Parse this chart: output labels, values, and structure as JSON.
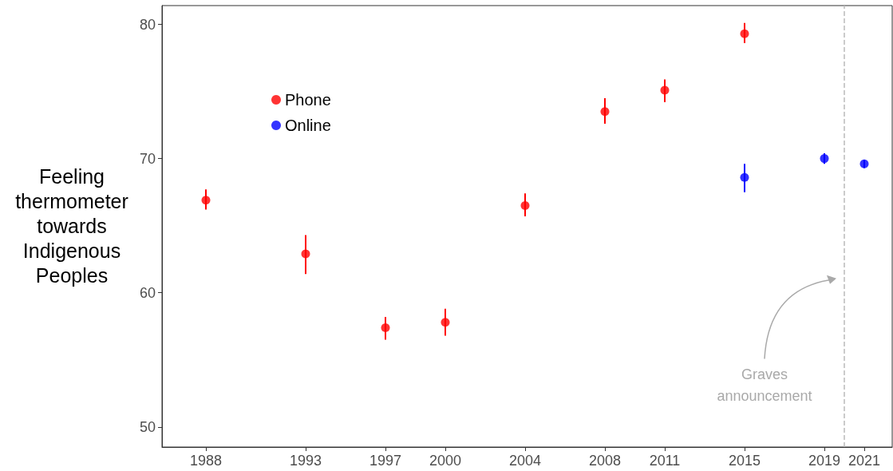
{
  "chart_data": {
    "type": "scatter",
    "ylabel": "Feeling thermometer towards Indigenous Peoples",
    "series": [
      {
        "name": "Phone",
        "color": "#ff0000",
        "x": [
          1988,
          1993,
          1997,
          2000,
          2004,
          2008,
          2011,
          2015
        ],
        "values": [
          66.9,
          62.9,
          57.4,
          57.8,
          66.5,
          73.5,
          75.1,
          79.3
        ],
        "errors": [
          [
            66.2,
            67.7
          ],
          [
            61.4,
            64.3
          ],
          [
            56.5,
            58.2
          ],
          [
            56.8,
            58.8
          ],
          [
            65.7,
            67.4
          ],
          [
            72.6,
            74.5
          ],
          [
            74.2,
            75.9
          ],
          [
            78.6,
            80.1
          ]
        ]
      },
      {
        "name": "Online",
        "color": "#0000ff",
        "x": [
          2015,
          2019,
          2021
        ],
        "values": [
          68.6,
          70.0,
          69.6
        ],
        "errors": [
          [
            67.5,
            69.6
          ],
          [
            69.6,
            70.4
          ],
          [
            69.3,
            69.9
          ]
        ]
      }
    ],
    "xlim": [
      1985.8,
      2022.4
    ],
    "xticks": [
      1988,
      1993,
      1997,
      2000,
      2004,
      2008,
      2011,
      2015,
      2019,
      2021
    ],
    "ylim": [
      48.5,
      81.4
    ],
    "yticks": [
      50,
      60,
      70,
      80
    ],
    "grid": false,
    "legend": "top left",
    "marker": "circle",
    "ref_lines": [
      {
        "axis": "x",
        "value": 2020,
        "label": null,
        "color": "#bbbbbb",
        "line_style": "dashed"
      }
    ],
    "annotations": [
      "Graves announcement"
    ]
  }
}
